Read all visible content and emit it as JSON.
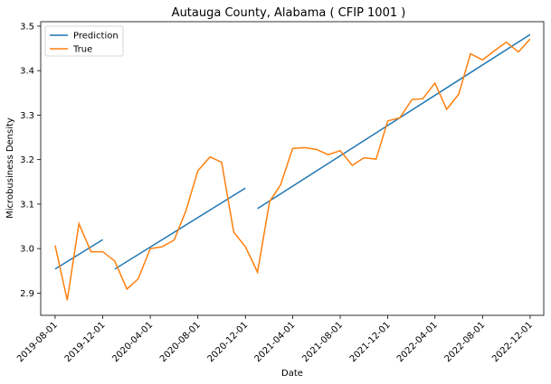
{
  "chart_data": {
    "type": "line",
    "title": "Autauga County, Alabama ( CFIP 1001 )",
    "xlabel": "Date",
    "ylabel": "Microbusiness Density",
    "ylim": [
      2.85,
      3.51
    ],
    "xlim": [
      "2019-06-25",
      "2023-01-05"
    ],
    "grid": false,
    "legend_position": "top-left",
    "x_ticks": [
      "2019-08-01",
      "2019-12-01",
      "2020-04-01",
      "2020-08-01",
      "2020-12-01",
      "2021-04-01",
      "2021-08-01",
      "2021-12-01",
      "2022-04-01",
      "2022-08-01",
      "2022-12-01"
    ],
    "y_ticks": [
      2.9,
      3.0,
      3.1,
      3.2,
      3.3,
      3.4,
      3.5
    ],
    "x": [
      "2019-08-01",
      "2019-09-01",
      "2019-10-01",
      "2019-11-01",
      "2019-12-01",
      "2020-01-01",
      "2020-02-01",
      "2020-03-01",
      "2020-04-01",
      "2020-05-01",
      "2020-06-01",
      "2020-07-01",
      "2020-08-01",
      "2020-09-01",
      "2020-10-01",
      "2020-11-01",
      "2020-12-01",
      "2021-01-01",
      "2021-02-01",
      "2021-03-01",
      "2021-04-01",
      "2021-05-01",
      "2021-06-01",
      "2021-07-01",
      "2021-08-01",
      "2021-09-01",
      "2021-10-01",
      "2021-11-01",
      "2021-12-01",
      "2022-01-01",
      "2022-02-01",
      "2022-03-01",
      "2022-04-01",
      "2022-05-01",
      "2022-06-01",
      "2022-07-01",
      "2022-08-01",
      "2022-09-01",
      "2022-10-01",
      "2022-11-01",
      "2022-12-01"
    ],
    "series": [
      {
        "name": "Prediction",
        "color": "#1f77b4",
        "segments": [
          {
            "x": [
              "2019-08-01",
              "2019-12-01"
            ],
            "values": [
              2.954,
              3.02
            ]
          },
          {
            "x": [
              "2020-01-01",
              "2020-12-01"
            ],
            "values": [
              2.954,
              3.136
            ]
          },
          {
            "x": [
              "2021-01-01",
              "2022-12-01"
            ],
            "values": [
              3.09,
              3.481
            ]
          }
        ]
      },
      {
        "name": "True",
        "color": "#ff7f0e",
        "values": [
          3.007,
          2.884,
          3.056,
          2.993,
          2.993,
          2.972,
          2.909,
          2.932,
          3.0,
          3.004,
          3.019,
          3.084,
          3.175,
          3.206,
          3.194,
          3.037,
          3.004,
          2.947,
          3.106,
          3.143,
          3.225,
          3.227,
          3.223,
          3.211,
          3.22,
          3.187,
          3.204,
          3.201,
          3.287,
          3.294,
          3.335,
          3.337,
          3.372,
          3.313,
          3.347,
          3.438,
          3.424,
          3.445,
          3.464,
          3.442,
          3.471
        ]
      }
    ]
  }
}
